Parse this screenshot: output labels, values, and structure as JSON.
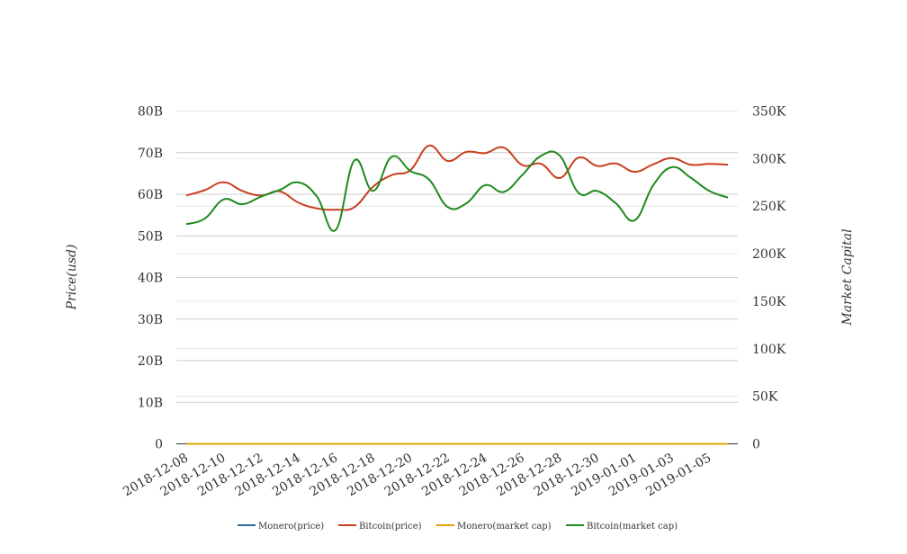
{
  "chart_data": {
    "type": "line",
    "x": [
      "2018-12-08",
      "2018-12-09",
      "2018-12-10",
      "2018-12-11",
      "2018-12-12",
      "2018-12-13",
      "2018-12-14",
      "2018-12-15",
      "2018-12-16",
      "2018-12-17",
      "2018-12-18",
      "2018-12-19",
      "2018-12-20",
      "2018-12-21",
      "2018-12-22",
      "2018-12-23",
      "2018-12-24",
      "2018-12-25",
      "2018-12-26",
      "2018-12-27",
      "2018-12-28",
      "2018-12-29",
      "2018-12-30",
      "2018-12-31",
      "2019-01-01",
      "2019-01-02",
      "2019-01-03",
      "2019-01-04",
      "2019-01-05",
      "2019-01-06"
    ],
    "x_tick_labels": [
      "2018-12-08",
      "2018-12-10",
      "2018-12-12",
      "2018-12-14",
      "2018-12-16",
      "2018-12-18",
      "2018-12-20",
      "2018-12-22",
      "2018-12-24",
      "2018-12-26",
      "2018-12-28",
      "2018-12-30",
      "2019-01-01",
      "2019-01-03",
      "2019-01-05"
    ],
    "ylabel_left": "Price(usd)",
    "ylabel_right": "Market Capital",
    "ylim_left": [
      0,
      80000000000
    ],
    "ylim_right": [
      0,
      350000
    ],
    "left_ticks": [
      "0",
      "10B",
      "20B",
      "30B",
      "40B",
      "50B",
      "60B",
      "70B",
      "80B"
    ],
    "right_ticks": [
      "0",
      "50K",
      "100K",
      "150K",
      "200K",
      "250K",
      "300K",
      "350K"
    ],
    "grid": true,
    "legend_position": "bottom",
    "series": [
      {
        "name": "Monero(price)",
        "color": "#2c6b9a",
        "axis": "left",
        "values": [
          0,
          0,
          0,
          0,
          0,
          0,
          0,
          0,
          0,
          0,
          0,
          0,
          0,
          0,
          0,
          0,
          0,
          0,
          0,
          0,
          0,
          0,
          0,
          0,
          0,
          0,
          0,
          0,
          0,
          0
        ]
      },
      {
        "name": "Bitcoin(price)",
        "color": "#c8401f",
        "axis": "left",
        "values": [
          59700000000,
          61000000000,
          62900000000,
          60800000000,
          59700000000,
          60700000000,
          58000000000,
          56600000000,
          56300000000,
          56900000000,
          61800000000,
          64600000000,
          65800000000,
          71700000000,
          68000000000,
          70200000000,
          69900000000,
          71200000000,
          67000000000,
          67300000000,
          63900000000,
          68800000000,
          66800000000,
          67400000000,
          65400000000,
          67200000000,
          68700000000,
          67100000000,
          67300000000,
          67100000000
        ]
      },
      {
        "name": "Monero(market cap)",
        "color": "#e2a400",
        "axis": "right",
        "values": [
          0,
          0,
          0,
          0,
          0,
          0,
          0,
          0,
          0,
          0,
          0,
          0,
          0,
          0,
          0,
          0,
          0,
          0,
          0,
          0,
          0,
          0,
          0,
          0,
          0,
          0,
          0,
          0,
          0,
          0
        ]
      },
      {
        "name": "Bitcoin(market cap)",
        "color": "#1e8a1e",
        "axis": "right",
        "values": [
          231000,
          237000,
          257000,
          252000,
          260000,
          267000,
          275000,
          260000,
          225000,
          298000,
          266000,
          302000,
          287000,
          278000,
          249000,
          253000,
          272000,
          265000,
          283000,
          303000,
          303000,
          264000,
          266000,
          253000,
          235000,
          272000,
          291000,
          280000,
          266000,
          259000
        ]
      }
    ]
  }
}
